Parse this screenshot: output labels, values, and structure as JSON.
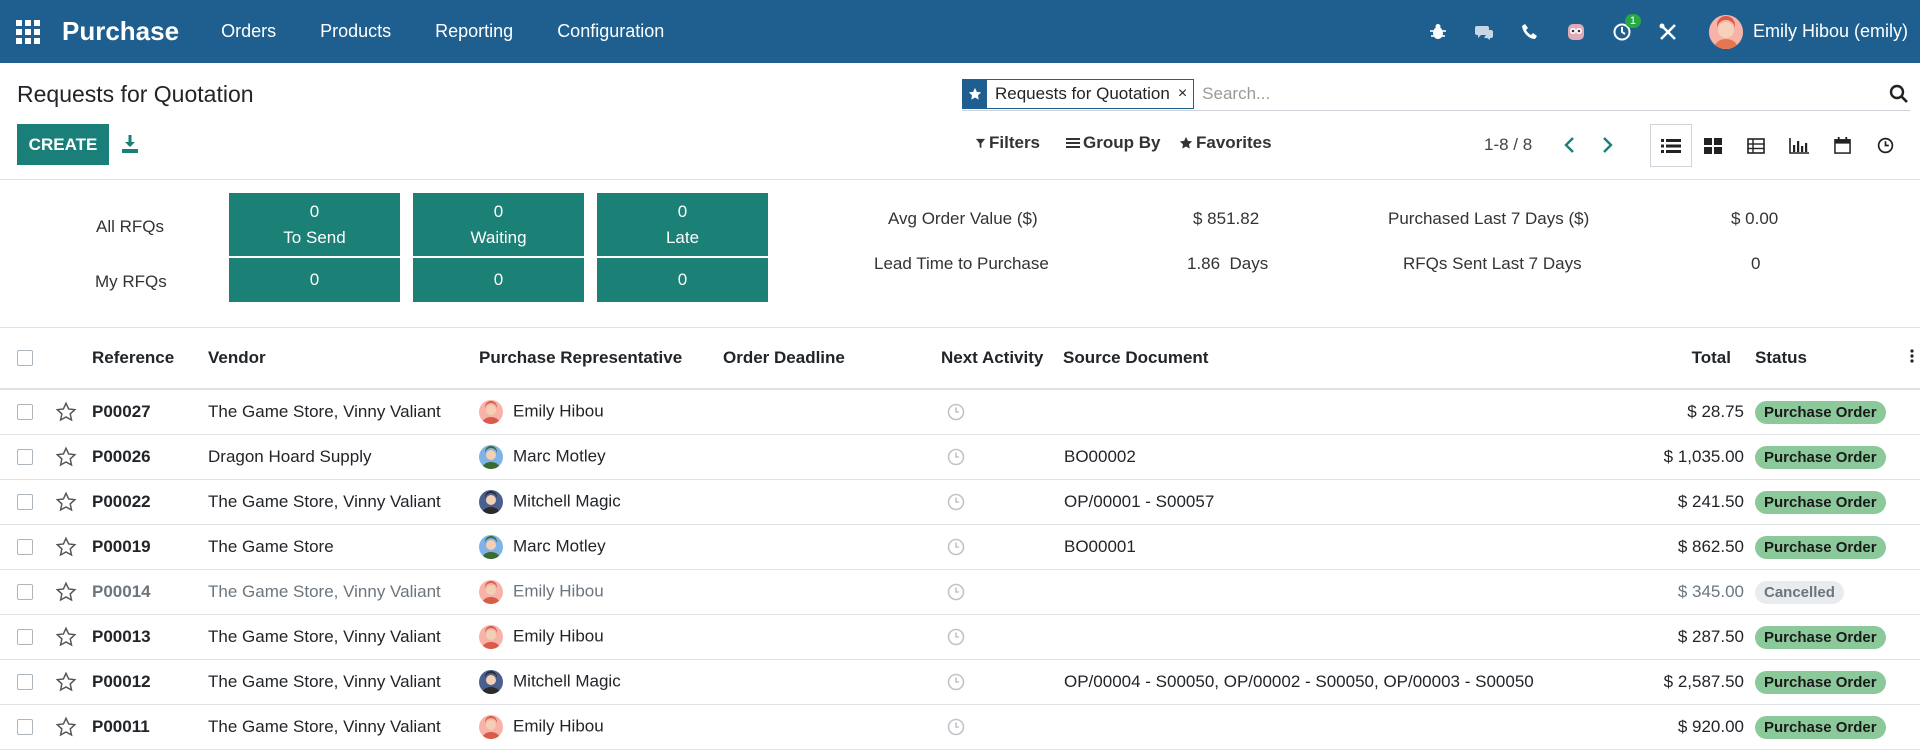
{
  "app": {
    "name": "Purchase",
    "menu": [
      "Orders",
      "Products",
      "Reporting",
      "Configuration"
    ],
    "user": "Emily Hibou (emily)",
    "activity_count": "1"
  },
  "control": {
    "breadcrumb": "Requests for Quotation",
    "create_label": "CREATE",
    "facet_label": "Requests for Quotation",
    "facet_remove": "×",
    "search_placeholder": "Search...",
    "filters_label": "Filters",
    "groupby_label": "Group By",
    "favorites_label": "Favorites",
    "pager": "1-8 / 8"
  },
  "dashboard": {
    "all_rfqs_label": "All RFQs",
    "my_rfqs_label": "My RFQs",
    "cells": [
      {
        "top": "0",
        "label": "To Send",
        "my": "0"
      },
      {
        "top": "0",
        "label": "Waiting",
        "my": "0"
      },
      {
        "top": "0",
        "label": "Late",
        "my": "0"
      }
    ],
    "kpis": {
      "avg_order_label": "Avg Order Value ($)",
      "avg_order_value": "$ 851.82",
      "purchased_label": "Purchased Last 7 Days ($)",
      "purchased_value": "$ 0.00",
      "lead_time_label": "Lead Time to Purchase",
      "lead_time_value": "1.86  Days",
      "rfq_sent_label": "RFQs Sent Last 7 Days",
      "rfq_sent_value": "0"
    }
  },
  "table": {
    "headers": {
      "reference": "Reference",
      "vendor": "Vendor",
      "rep": "Purchase Representative",
      "deadline": "Order Deadline",
      "activity": "Next Activity",
      "source": "Source Document",
      "total": "Total",
      "status": "Status"
    },
    "rows": [
      {
        "ref": "P00027",
        "vendor": "The Game Store, Vinny Valiant",
        "rep": "Emily Hibou",
        "source": "",
        "total": "$ 28.75",
        "status": "Purchase Order"
      },
      {
        "ref": "P00026",
        "vendor": "Dragon Hoard Supply",
        "rep": "Marc Motley",
        "source": "BO00002",
        "total": "$ 1,035.00",
        "status": "Purchase Order"
      },
      {
        "ref": "P00022",
        "vendor": "The Game Store, Vinny Valiant",
        "rep": "Mitchell Magic",
        "source": "OP/00001 - S00057",
        "total": "$ 241.50",
        "status": "Purchase Order"
      },
      {
        "ref": "P00019",
        "vendor": "The Game Store",
        "rep": "Marc Motley",
        "source": "BO00001",
        "total": "$ 862.50",
        "status": "Purchase Order"
      },
      {
        "ref": "P00014",
        "vendor": "The Game Store, Vinny Valiant",
        "rep": "Emily Hibou",
        "source": "",
        "total": "$ 345.00",
        "status": "Cancelled"
      },
      {
        "ref": "P00013",
        "vendor": "The Game Store, Vinny Valiant",
        "rep": "Emily Hibou",
        "source": "",
        "total": "$ 287.50",
        "status": "Purchase Order"
      },
      {
        "ref": "P00012",
        "vendor": "The Game Store, Vinny Valiant",
        "rep": "Mitchell Magic",
        "source": "OP/00004 - S00050, OP/00002 - S00050, OP/00003 - S00050",
        "total": "$ 2,587.50",
        "status": "Purchase Order"
      },
      {
        "ref": "P00011",
        "vendor": "The Game Store, Vinny Valiant",
        "rep": "Emily Hibou",
        "source": "",
        "total": "$ 920.00",
        "status": "Purchase Order"
      }
    ]
  }
}
